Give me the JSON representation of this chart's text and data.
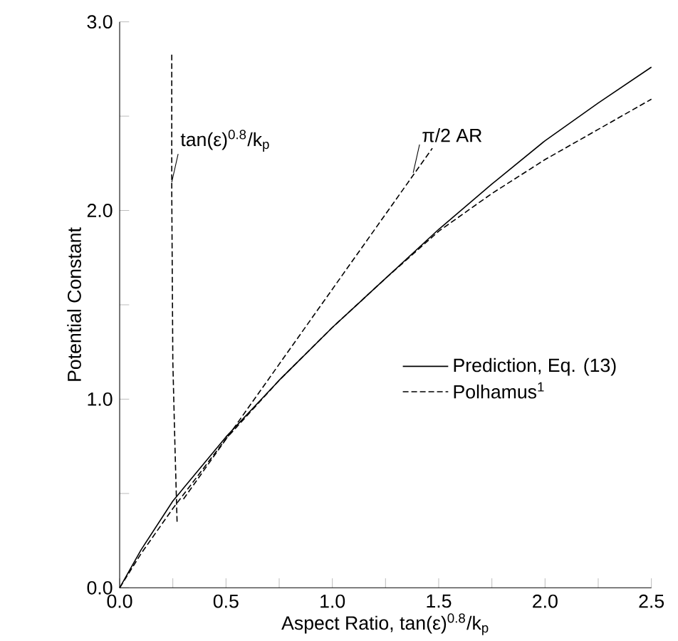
{
  "chart_data": {
    "type": "line",
    "xlabel": "Aspect Ratio, tan(ε)$^{0.8}$/k$_{p}$",
    "ylabel": "Potential Constant",
    "xlim": [
      0,
      2.5
    ],
    "ylim": [
      0,
      3
    ],
    "xticks": [
      {
        "value": 0,
        "label": "0.0"
      },
      {
        "value": 0.25,
        "label": null
      },
      {
        "value": 0.5,
        "label": "0.5"
      },
      {
        "value": 0.75,
        "label": null
      },
      {
        "value": 1,
        "label": "1.0"
      },
      {
        "value": 1.25,
        "label": null
      },
      {
        "value": 1.5,
        "label": "1.5"
      },
      {
        "value": 1.75,
        "label": null
      },
      {
        "value": 2,
        "label": "2.0"
      },
      {
        "value": 2.25,
        "label": null
      },
      {
        "value": 2.5,
        "label": "2.5"
      }
    ],
    "yticks": [
      {
        "value": 0,
        "label": "0.0"
      },
      {
        "value": 0.5,
        "label": null
      },
      {
        "value": 1,
        "label": "1.0"
      },
      {
        "value": 1.5,
        "label": null
      },
      {
        "value": 2,
        "label": "2.0"
      },
      {
        "value": 2.5,
        "label": null
      },
      {
        "value": 3,
        "label": "3.0"
      }
    ],
    "legend": "right",
    "marker": "none",
    "series": [
      {
        "name": "Prediction, Eq. (13)",
        "color": "#000000",
        "line_style": "solid",
        "x": [
          0,
          0.1,
          0.25,
          0.5,
          0.75,
          1.0,
          1.25,
          1.5,
          1.75,
          2.0,
          2.25,
          2.5
        ],
        "values": [
          0,
          0.2,
          0.46,
          0.8,
          1.1,
          1.38,
          1.64,
          1.9,
          2.14,
          2.37,
          2.57,
          2.76
        ]
      },
      {
        "name": "Polhamus$^{1}$",
        "color": "#000000",
        "line_style": "dashed",
        "x": [
          0,
          0.1,
          0.25,
          0.5,
          0.75,
          1.0,
          1.25,
          1.5,
          1.75,
          2.0,
          2.25,
          2.5
        ],
        "values": [
          0,
          0.18,
          0.42,
          0.79,
          1.1,
          1.38,
          1.64,
          1.89,
          2.09,
          2.27,
          2.43,
          2.59
        ]
      },
      {
        "color": "#000000",
        "line_style": "dashed",
        "x": [
          0.3,
          1.47
        ],
        "values": [
          0.47,
          2.33
        ]
      },
      {
        "color": "#000000",
        "line_style": "dashed",
        "x": [
          0.27,
          0.26,
          0.25,
          0.245,
          0.245
        ],
        "values": [
          0.35,
          0.75,
          1.2,
          2.1,
          2.83
        ]
      }
    ],
    "annotations": [
      {
        "text": "tan(ε)$^{0.8}$/k$_{p}$",
        "x": 0.245,
        "y": 2.15
      },
      {
        "text": "π/2 AR",
        "x": 1.38,
        "y": 2.2
      }
    ]
  }
}
